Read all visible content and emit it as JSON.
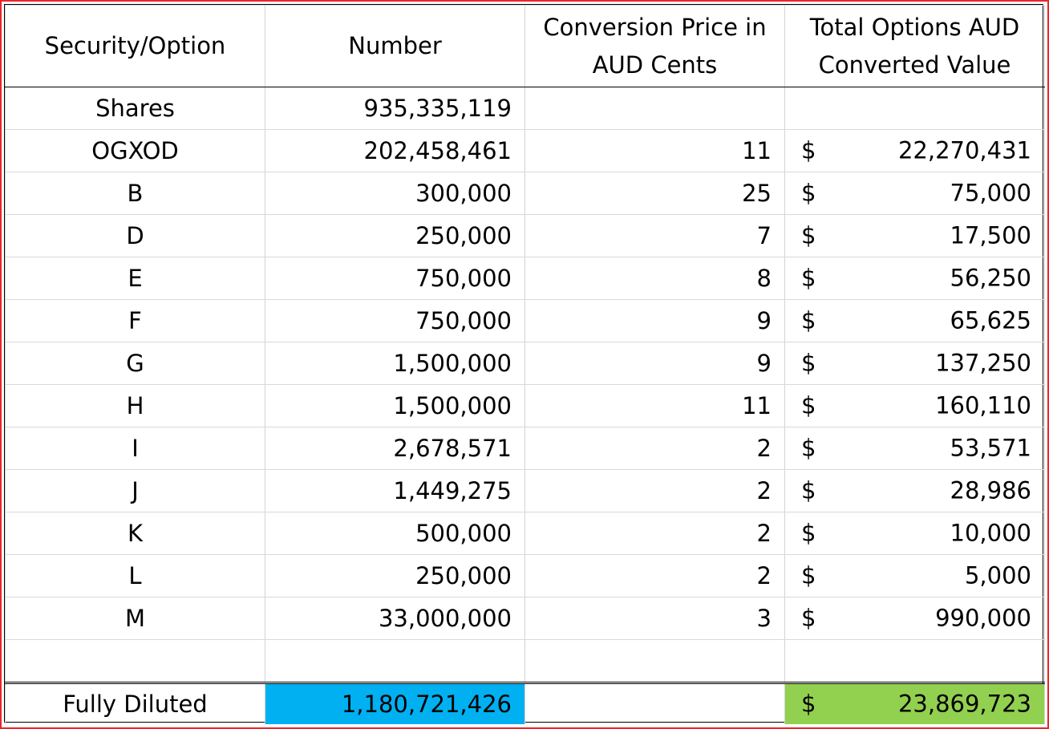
{
  "headers": {
    "security": "Security/Option",
    "number": "Number",
    "price_line1": "Conversion Price in",
    "price_line2": "AUD Cents",
    "value_line1": "Total Options AUD",
    "value_line2": "Converted Value"
  },
  "rows": [
    {
      "name": "Shares",
      "number": "935,335,119",
      "price": "",
      "currency": "",
      "value": ""
    },
    {
      "name": "OGXOD",
      "number": "202,458,461",
      "price": "11",
      "currency": "$",
      "value": "22,270,431"
    },
    {
      "name": "B",
      "number": "300,000",
      "price": "25",
      "currency": "$",
      "value": "75,000"
    },
    {
      "name": "D",
      "number": "250,000",
      "price": "7",
      "currency": "$",
      "value": "17,500"
    },
    {
      "name": "E",
      "number": "750,000",
      "price": "8",
      "currency": "$",
      "value": "56,250"
    },
    {
      "name": "F",
      "number": "750,000",
      "price": "9",
      "currency": "$",
      "value": "65,625"
    },
    {
      "name": "G",
      "number": "1,500,000",
      "price": "9",
      "currency": "$",
      "value": "137,250"
    },
    {
      "name": "H",
      "number": "1,500,000",
      "price": "11",
      "currency": "$",
      "value": "160,110"
    },
    {
      "name": "I",
      "number": "2,678,571",
      "price": "2",
      "currency": "$",
      "value": "53,571"
    },
    {
      "name": "J",
      "number": "1,449,275",
      "price": "2",
      "currency": "$",
      "value": "28,986"
    },
    {
      "name": "K",
      "number": "500,000",
      "price": "2",
      "currency": "$",
      "value": "10,000"
    },
    {
      "name": "L",
      "number": "250,000",
      "price": "2",
      "currency": "$",
      "value": "5,000"
    },
    {
      "name": "M",
      "number": "33,000,000",
      "price": "3",
      "currency": "$",
      "value": "990,000"
    }
  ],
  "total": {
    "label": "Fully Diluted",
    "number": "1,180,721,426",
    "currency": "$",
    "value": "23,869,723"
  },
  "colors": {
    "frame_border": "#e8262b",
    "total_number_fill": "#00b0f0",
    "total_value_fill": "#92d050"
  }
}
